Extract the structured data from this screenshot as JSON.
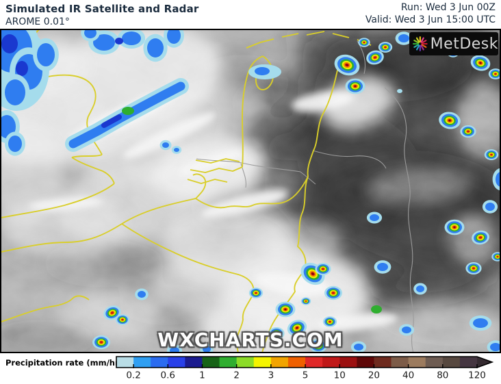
{
  "header": {
    "title": "Simulated IR Satellite and Radar",
    "model": "AROME 0.01°",
    "run": "Run: Wed 3 Jun 00Z",
    "valid": "Valid: Wed 3 Jun 15:00 UTC"
  },
  "map": {
    "watermark": "WXCHARTS.COM",
    "country_border_color": "#d9ce2a",
    "region_border_color": "#9b9b9b"
  },
  "logo": {
    "text": "MetDesk"
  },
  "legend": {
    "label": "Precipitation rate (mm/hr)",
    "tick_labels": [
      "0.2",
      "0.6",
      "1",
      "2",
      "3",
      "5",
      "10",
      "20",
      "40",
      "80",
      "120"
    ],
    "segment_colors": [
      "#b9dde6",
      "#2f9ff2",
      "#2b6cf0",
      "#2940e8",
      "#1b1b8f",
      "#176317",
      "#2fae2f",
      "#8cdc28",
      "#f4f400",
      "#f2a400",
      "#ef6000",
      "#e02828",
      "#c01818",
      "#9c1010",
      "#5e0707",
      "#6e2a1e",
      "#7d5c48",
      "#9c7b5e",
      "#6e5c52",
      "#57483f",
      "#453641"
    ],
    "arrow_color": "#352b31"
  }
}
